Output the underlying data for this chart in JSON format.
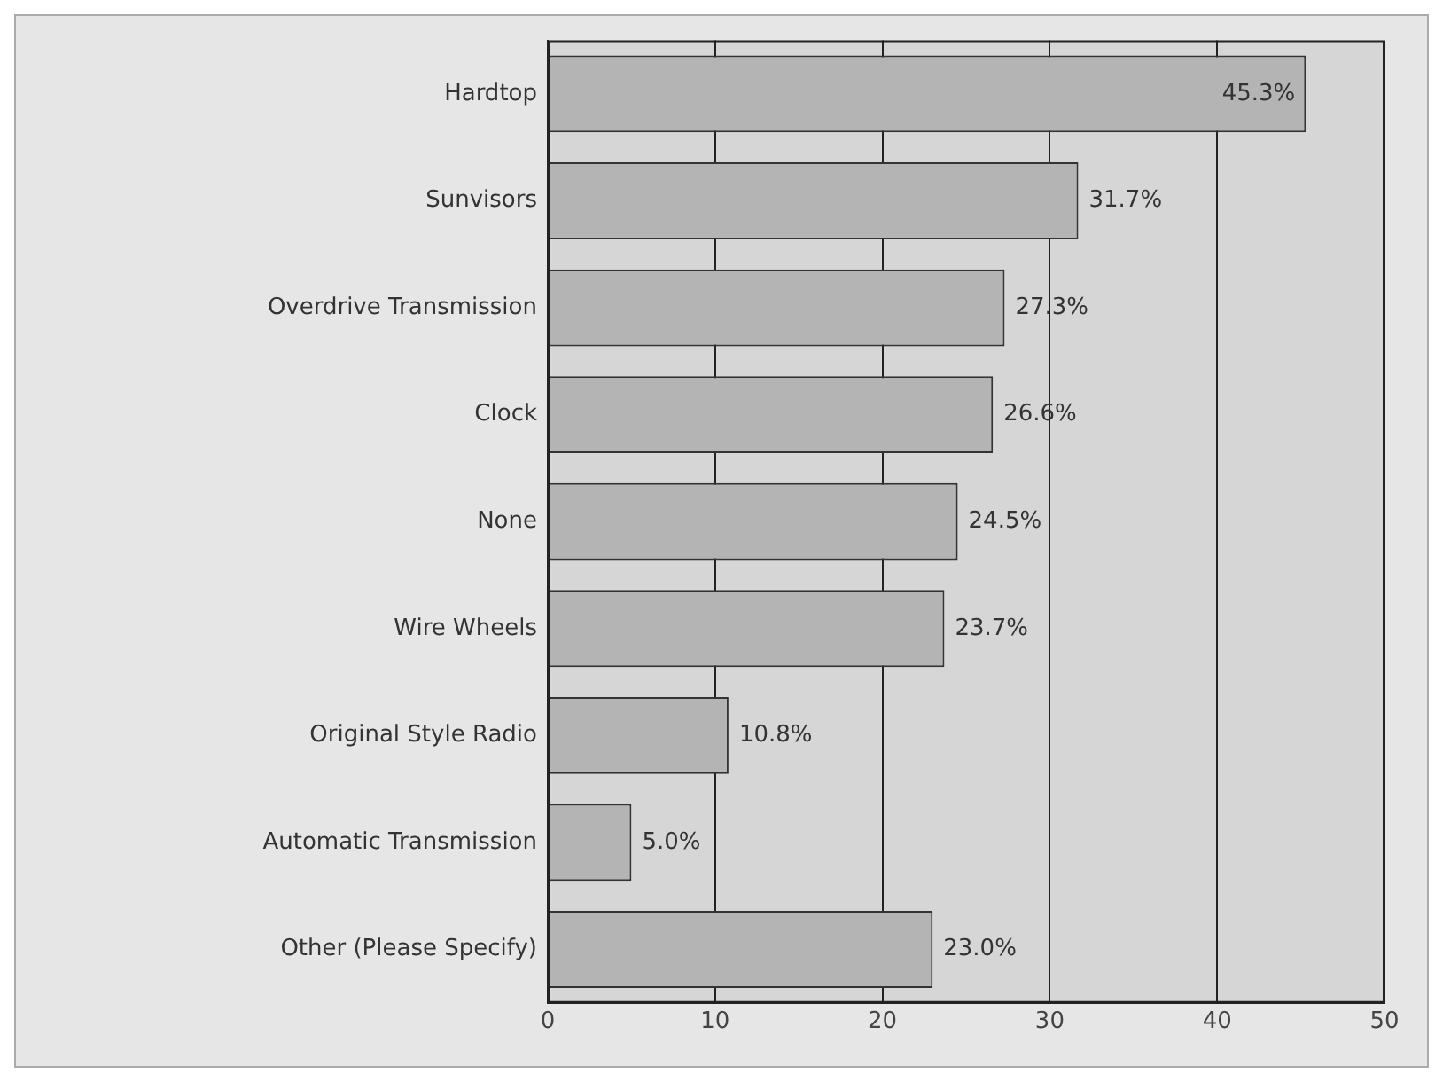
{
  "chart_data": {
    "type": "bar",
    "orientation": "horizontal",
    "categories": [
      "Hardtop",
      "Sunvisors",
      "Overdrive Transmission",
      "Clock",
      "None",
      "Wire Wheels",
      "Original Style Radio",
      "Automatic Transmission",
      "Other (Please Specify)"
    ],
    "values": [
      45.3,
      31.7,
      27.3,
      26.6,
      24.5,
      23.7,
      10.8,
      5.0,
      23.0
    ],
    "value_labels": [
      "45.3%",
      "31.7%",
      "27.3%",
      "26.6%",
      "24.5%",
      "23.7%",
      "10.8%",
      "5.0%",
      "23.0%"
    ],
    "color": "#b4b4b4",
    "xlim": [
      0,
      50
    ],
    "xticks": [
      0,
      10,
      20,
      30,
      40,
      50
    ],
    "grid": "x",
    "legend": false
  }
}
